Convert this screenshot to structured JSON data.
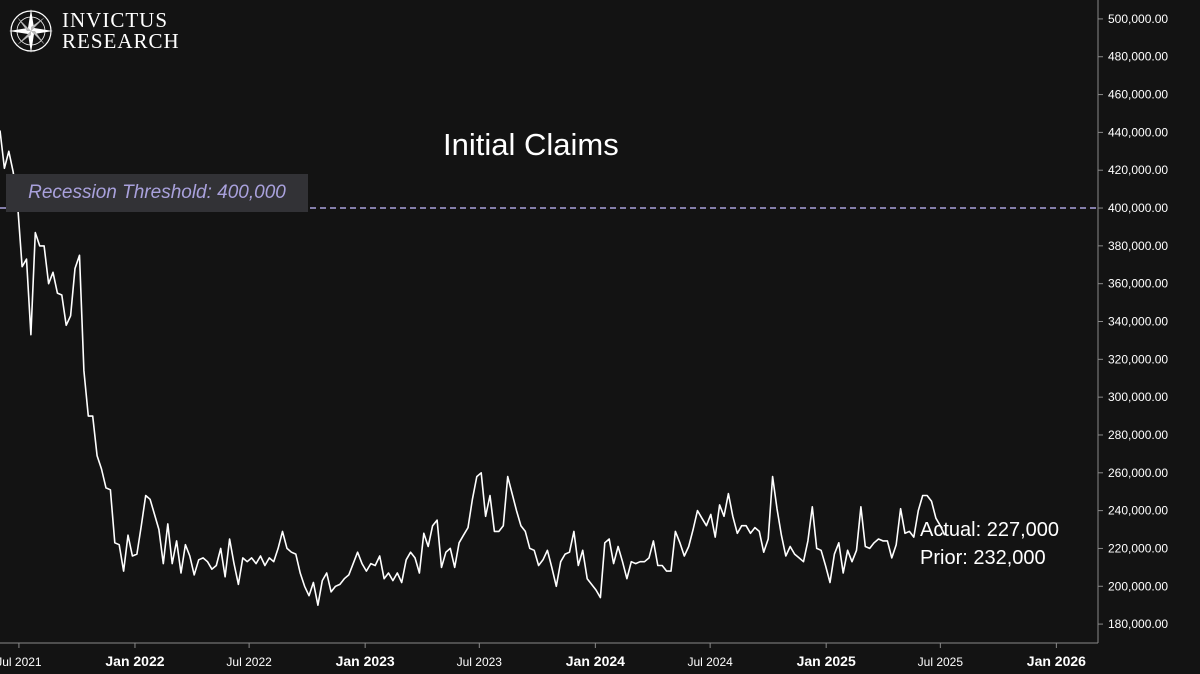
{
  "brand": {
    "line1": "INVICTUS",
    "line2": "RESEARCH"
  },
  "colors": {
    "background": "#131313",
    "line": "#ffffff",
    "threshold": "#a9a1dc",
    "axis": "#8a8a8a",
    "tick_label": "#ffffff"
  },
  "chart_data": {
    "type": "line",
    "title": "Initial Claims",
    "y_unit": "claims",
    "ylim": [
      170000,
      510000
    ],
    "y_ticks": [
      180000,
      200000,
      220000,
      240000,
      260000,
      280000,
      300000,
      320000,
      340000,
      360000,
      380000,
      400000,
      420000,
      440000,
      460000,
      480000,
      500000
    ],
    "y_tick_labels": [
      "180,000.00",
      "200,000.00",
      "220,000.00",
      "240,000.00",
      "260,000.00",
      "280,000.00",
      "300,000.00",
      "320,000.00",
      "340,000.00",
      "360,000.00",
      "380,000.00",
      "400,000.00",
      "420,000.00",
      "440,000.00",
      "460,000.00",
      "480,000.00",
      "500,000.00"
    ],
    "xlim": [
      "2021-06-01",
      "2026-03-08"
    ],
    "x_ticks": [
      {
        "label": "Jul 2021",
        "date": "2021-07-01",
        "bold": false
      },
      {
        "label": "Jan 2022",
        "date": "2022-01-01",
        "bold": true
      },
      {
        "label": "Jul 2022",
        "date": "2022-07-01",
        "bold": false
      },
      {
        "label": "Jan 2023",
        "date": "2023-01-01",
        "bold": true
      },
      {
        "label": "Jul 2023",
        "date": "2023-07-01",
        "bold": false
      },
      {
        "label": "Jan 2024",
        "date": "2024-01-01",
        "bold": true
      },
      {
        "label": "Jul 2024",
        "date": "2024-07-01",
        "bold": false
      },
      {
        "label": "Jan 2025",
        "date": "2025-01-01",
        "bold": true
      },
      {
        "label": "Jul 2025",
        "date": "2025-07-01",
        "bold": false
      },
      {
        "label": "Jan 2026",
        "date": "2026-01-01",
        "bold": true
      }
    ],
    "threshold": {
      "label": "Recession Threshold: 400,000",
      "value": 400000,
      "style": "dashed"
    },
    "annotations": {
      "actual": "Actual: 227,000",
      "prior": "Prior: 232,000"
    },
    "grid": false,
    "legend": "none",
    "series": [
      {
        "points": [
          [
            "2021-06-01",
            441000
          ],
          [
            "2021-06-08",
            421000
          ],
          [
            "2021-06-15",
            430000
          ],
          [
            "2021-06-22",
            419000
          ],
          [
            "2021-06-29",
            401000
          ],
          [
            "2021-07-06",
            369000
          ],
          [
            "2021-07-13",
            373000
          ],
          [
            "2021-07-20",
            333000
          ],
          [
            "2021-07-27",
            387000
          ],
          [
            "2021-08-03",
            380000
          ],
          [
            "2021-08-10",
            380000
          ],
          [
            "2021-08-17",
            360000
          ],
          [
            "2021-08-24",
            366000
          ],
          [
            "2021-08-31",
            355000
          ],
          [
            "2021-09-07",
            354000
          ],
          [
            "2021-09-14",
            338000
          ],
          [
            "2021-09-21",
            343000
          ],
          [
            "2021-09-28",
            368000
          ],
          [
            "2021-10-05",
            375000
          ],
          [
            "2021-10-12",
            314000
          ],
          [
            "2021-10-19",
            290000
          ],
          [
            "2021-10-26",
            290000
          ],
          [
            "2021-11-02",
            269000
          ],
          [
            "2021-11-09",
            262000
          ],
          [
            "2021-11-16",
            252000
          ],
          [
            "2021-11-23",
            251000
          ],
          [
            "2021-11-30",
            223000
          ],
          [
            "2021-12-07",
            222000
          ],
          [
            "2021-12-14",
            208000
          ],
          [
            "2021-12-21",
            227000
          ],
          [
            "2021-12-28",
            216000
          ],
          [
            "2022-01-04",
            217000
          ],
          [
            "2022-01-11",
            232000
          ],
          [
            "2022-01-18",
            248000
          ],
          [
            "2022-01-25",
            246000
          ],
          [
            "2022-02-01",
            238000
          ],
          [
            "2022-02-08",
            230000
          ],
          [
            "2022-02-15",
            212000
          ],
          [
            "2022-02-22",
            233000
          ],
          [
            "2022-03-01",
            212000
          ],
          [
            "2022-03-08",
            224000
          ],
          [
            "2022-03-15",
            207000
          ],
          [
            "2022-03-22",
            222000
          ],
          [
            "2022-03-29",
            216000
          ],
          [
            "2022-04-05",
            206000
          ],
          [
            "2022-04-12",
            214000
          ],
          [
            "2022-04-19",
            215000
          ],
          [
            "2022-04-26",
            213000
          ],
          [
            "2022-05-03",
            209000
          ],
          [
            "2022-05-10",
            211000
          ],
          [
            "2022-05-17",
            220000
          ],
          [
            "2022-05-24",
            205000
          ],
          [
            "2022-05-31",
            225000
          ],
          [
            "2022-06-07",
            212000
          ],
          [
            "2022-06-14",
            201000
          ],
          [
            "2022-06-21",
            215000
          ],
          [
            "2022-06-28",
            213000
          ],
          [
            "2022-07-05",
            215000
          ],
          [
            "2022-07-12",
            212000
          ],
          [
            "2022-07-19",
            216000
          ],
          [
            "2022-07-26",
            211000
          ],
          [
            "2022-08-02",
            215000
          ],
          [
            "2022-08-09",
            213000
          ],
          [
            "2022-08-16",
            220000
          ],
          [
            "2022-08-23",
            229000
          ],
          [
            "2022-08-30",
            220000
          ],
          [
            "2022-09-06",
            218000
          ],
          [
            "2022-09-13",
            217000
          ],
          [
            "2022-09-20",
            207000
          ],
          [
            "2022-09-27",
            200000
          ],
          [
            "2022-10-04",
            195000
          ],
          [
            "2022-10-11",
            202000
          ],
          [
            "2022-10-18",
            190000
          ],
          [
            "2022-10-25",
            203000
          ],
          [
            "2022-11-01",
            207000
          ],
          [
            "2022-11-08",
            197000
          ],
          [
            "2022-11-15",
            200000
          ],
          [
            "2022-11-22",
            201000
          ],
          [
            "2022-11-29",
            204000
          ],
          [
            "2022-12-06",
            206000
          ],
          [
            "2022-12-13",
            212000
          ],
          [
            "2022-12-20",
            218000
          ],
          [
            "2022-12-27",
            212000
          ],
          [
            "2023-01-03",
            208000
          ],
          [
            "2023-01-10",
            212000
          ],
          [
            "2023-01-17",
            211000
          ],
          [
            "2023-01-24",
            216000
          ],
          [
            "2023-01-31",
            204000
          ],
          [
            "2023-02-07",
            207000
          ],
          [
            "2023-02-14",
            203000
          ],
          [
            "2023-02-21",
            207000
          ],
          [
            "2023-02-28",
            202000
          ],
          [
            "2023-03-07",
            214000
          ],
          [
            "2023-03-14",
            218000
          ],
          [
            "2023-03-21",
            215000
          ],
          [
            "2023-03-28",
            207000
          ],
          [
            "2023-04-04",
            228000
          ],
          [
            "2023-04-11",
            221000
          ],
          [
            "2023-04-18",
            232000
          ],
          [
            "2023-04-25",
            235000
          ],
          [
            "2023-05-02",
            210000
          ],
          [
            "2023-05-09",
            218000
          ],
          [
            "2023-05-16",
            220000
          ],
          [
            "2023-05-23",
            210000
          ],
          [
            "2023-05-30",
            223000
          ],
          [
            "2023-06-06",
            227000
          ],
          [
            "2023-06-13",
            231000
          ],
          [
            "2023-06-20",
            246000
          ],
          [
            "2023-06-27",
            258000
          ],
          [
            "2023-07-04",
            260000
          ],
          [
            "2023-07-11",
            237000
          ],
          [
            "2023-07-18",
            248000
          ],
          [
            "2023-07-25",
            229000
          ],
          [
            "2023-08-01",
            229000
          ],
          [
            "2023-08-08",
            232000
          ],
          [
            "2023-08-15",
            258000
          ],
          [
            "2023-08-22",
            249000
          ],
          [
            "2023-08-29",
            240000
          ],
          [
            "2023-09-05",
            232000
          ],
          [
            "2023-09-12",
            229000
          ],
          [
            "2023-09-19",
            220000
          ],
          [
            "2023-09-26",
            219000
          ],
          [
            "2023-10-03",
            211000
          ],
          [
            "2023-10-10",
            214000
          ],
          [
            "2023-10-17",
            219000
          ],
          [
            "2023-10-24",
            210000
          ],
          [
            "2023-10-31",
            200000
          ],
          [
            "2023-11-07",
            213000
          ],
          [
            "2023-11-14",
            217000
          ],
          [
            "2023-11-21",
            218000
          ],
          [
            "2023-11-28",
            229000
          ],
          [
            "2023-12-05",
            211000
          ],
          [
            "2023-12-12",
            219000
          ],
          [
            "2023-12-19",
            204000
          ],
          [
            "2024-01-02",
            198000
          ],
          [
            "2024-01-09",
            194000
          ],
          [
            "2024-01-16",
            223000
          ],
          [
            "2024-01-23",
            225000
          ],
          [
            "2024-01-30",
            212000
          ],
          [
            "2024-02-06",
            221000
          ],
          [
            "2024-02-13",
            213000
          ],
          [
            "2024-02-20",
            204000
          ],
          [
            "2024-02-27",
            213000
          ],
          [
            "2024-03-05",
            212000
          ],
          [
            "2024-03-12",
            213000
          ],
          [
            "2024-03-19",
            213000
          ],
          [
            "2024-03-26",
            215000
          ],
          [
            "2024-04-02",
            224000
          ],
          [
            "2024-04-09",
            211000
          ],
          [
            "2024-04-16",
            211000
          ],
          [
            "2024-04-23",
            208000
          ],
          [
            "2024-04-30",
            208000
          ],
          [
            "2024-05-07",
            229000
          ],
          [
            "2024-05-14",
            223000
          ],
          [
            "2024-05-21",
            216000
          ],
          [
            "2024-05-28",
            221000
          ],
          [
            "2024-06-04",
            230000
          ],
          [
            "2024-06-11",
            240000
          ],
          [
            "2024-06-18",
            236000
          ],
          [
            "2024-06-25",
            232000
          ],
          [
            "2024-07-02",
            238000
          ],
          [
            "2024-07-09",
            226000
          ],
          [
            "2024-07-16",
            243000
          ],
          [
            "2024-07-23",
            237000
          ],
          [
            "2024-07-30",
            249000
          ],
          [
            "2024-08-06",
            237000
          ],
          [
            "2024-08-13",
            228000
          ],
          [
            "2024-08-20",
            232000
          ],
          [
            "2024-08-27",
            232000
          ],
          [
            "2024-09-03",
            228000
          ],
          [
            "2024-09-10",
            231000
          ],
          [
            "2024-09-17",
            229000
          ],
          [
            "2024-09-24",
            218000
          ],
          [
            "2024-10-01",
            225000
          ],
          [
            "2024-10-08",
            258000
          ],
          [
            "2024-10-15",
            241000
          ],
          [
            "2024-10-22",
            227000
          ],
          [
            "2024-10-29",
            216000
          ],
          [
            "2024-11-05",
            221000
          ],
          [
            "2024-11-12",
            217000
          ],
          [
            "2024-11-19",
            215000
          ],
          [
            "2024-11-26",
            213000
          ],
          [
            "2024-12-03",
            224000
          ],
          [
            "2024-12-10",
            242000
          ],
          [
            "2024-12-17",
            220000
          ],
          [
            "2024-12-24",
            219000
          ],
          [
            "2024-12-31",
            211000
          ],
          [
            "2025-01-07",
            202000
          ],
          [
            "2025-01-14",
            217000
          ],
          [
            "2025-01-21",
            223000
          ],
          [
            "2025-01-28",
            207000
          ],
          [
            "2025-02-04",
            219000
          ],
          [
            "2025-02-11",
            213000
          ],
          [
            "2025-02-18",
            219000
          ],
          [
            "2025-02-25",
            242000
          ],
          [
            "2025-03-04",
            221000
          ],
          [
            "2025-03-11",
            220000
          ],
          [
            "2025-03-18",
            223000
          ],
          [
            "2025-03-25",
            225000
          ],
          [
            "2025-04-01",
            224000
          ],
          [
            "2025-04-08",
            224000
          ],
          [
            "2025-04-15",
            215000
          ],
          [
            "2025-04-22",
            222000
          ],
          [
            "2025-04-29",
            241000
          ],
          [
            "2025-05-06",
            228000
          ],
          [
            "2025-05-13",
            229000
          ],
          [
            "2025-05-20",
            226000
          ],
          [
            "2025-05-27",
            240000
          ],
          [
            "2025-06-03",
            248000
          ],
          [
            "2025-06-10",
            248000
          ],
          [
            "2025-06-17",
            245000
          ],
          [
            "2025-06-24",
            236000
          ],
          [
            "2025-07-01",
            232000
          ],
          [
            "2025-07-08",
            227000
          ]
        ]
      }
    ]
  }
}
